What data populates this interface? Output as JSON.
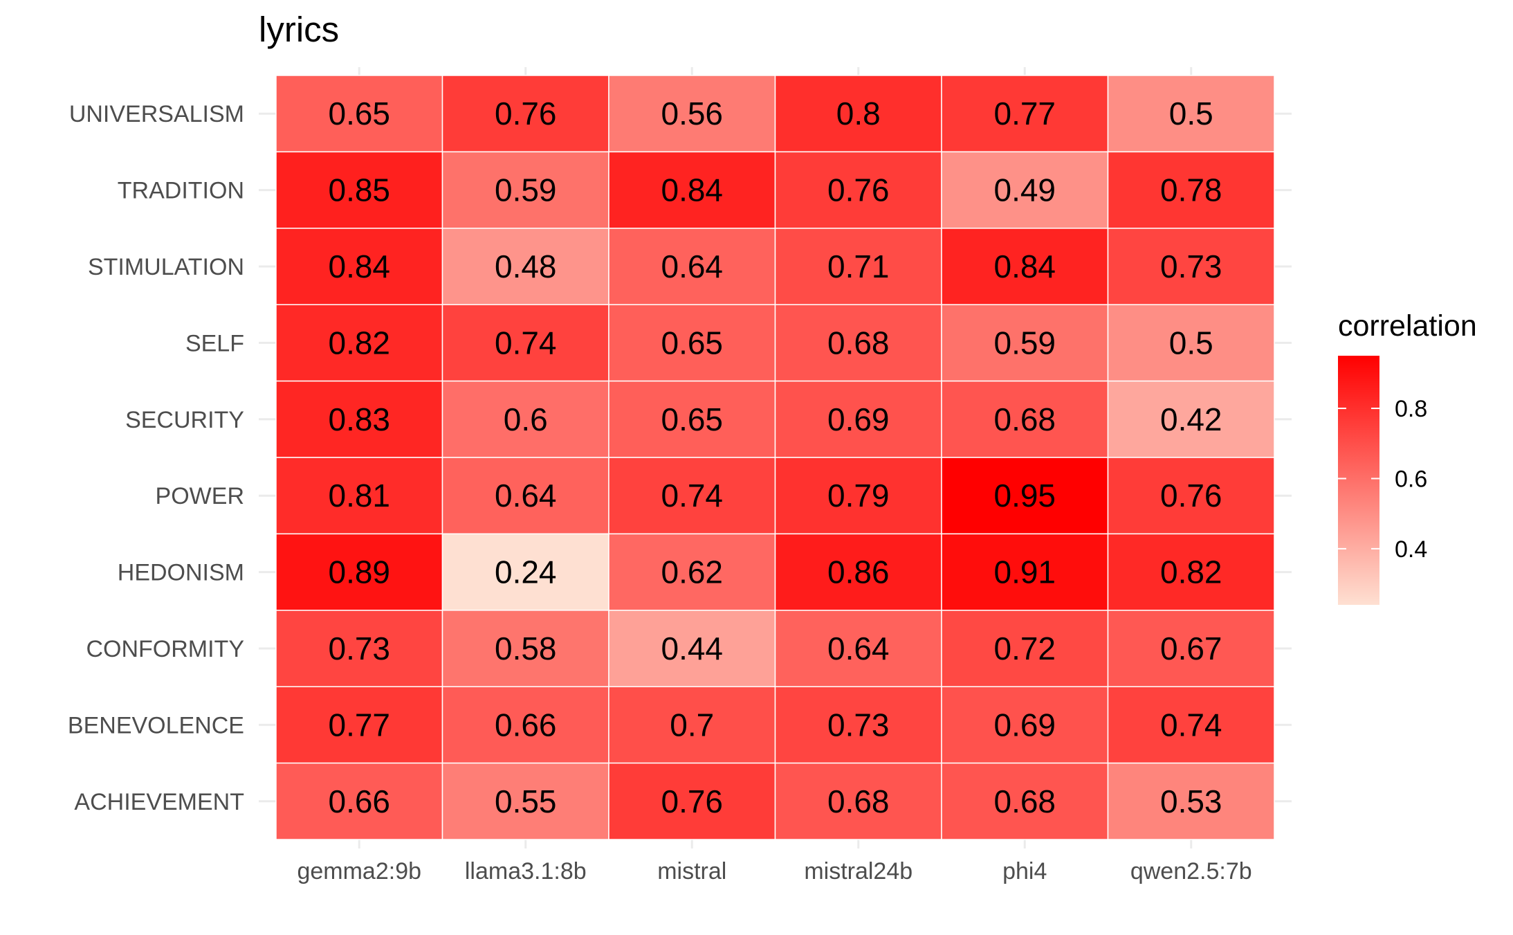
{
  "chart_data": {
    "type": "heatmap",
    "title": "lyrics",
    "xlabel": "",
    "ylabel": "",
    "x_categories": [
      "gemma2:9b",
      "llama3.1:8b",
      "mistral",
      "mistral24b",
      "phi4",
      "qwen2.5:7b"
    ],
    "y_categories": [
      "UNIVERSALISM",
      "TRADITION",
      "STIMULATION",
      "SELF",
      "SECURITY",
      "POWER",
      "HEDONISM",
      "CONFORMITY",
      "BENEVOLENCE",
      "ACHIEVEMENT"
    ],
    "values": [
      [
        0.65,
        0.76,
        0.56,
        0.8,
        0.77,
        0.5
      ],
      [
        0.85,
        0.59,
        0.84,
        0.76,
        0.49,
        0.78
      ],
      [
        0.84,
        0.48,
        0.64,
        0.71,
        0.84,
        0.73
      ],
      [
        0.82,
        0.74,
        0.65,
        0.68,
        0.59,
        0.5
      ],
      [
        0.83,
        0.6,
        0.65,
        0.69,
        0.68,
        0.42
      ],
      [
        0.81,
        0.64,
        0.74,
        0.79,
        0.95,
        0.76
      ],
      [
        0.89,
        0.24,
        0.62,
        0.86,
        0.91,
        0.82
      ],
      [
        0.73,
        0.58,
        0.44,
        0.64,
        0.72,
        0.67
      ],
      [
        0.77,
        0.66,
        0.7,
        0.73,
        0.69,
        0.74
      ],
      [
        0.66,
        0.55,
        0.76,
        0.68,
        0.68,
        0.53
      ]
    ],
    "value_labels": [
      [
        "0.65",
        "0.76",
        "0.56",
        "0.8",
        "0.77",
        "0.5"
      ],
      [
        "0.85",
        "0.59",
        "0.84",
        "0.76",
        "0.49",
        "0.78"
      ],
      [
        "0.84",
        "0.48",
        "0.64",
        "0.71",
        "0.84",
        "0.73"
      ],
      [
        "0.82",
        "0.74",
        "0.65",
        "0.68",
        "0.59",
        "0.5"
      ],
      [
        "0.83",
        "0.6",
        "0.65",
        "0.69",
        "0.68",
        "0.42"
      ],
      [
        "0.81",
        "0.64",
        "0.74",
        "0.79",
        "0.95",
        "0.76"
      ],
      [
        "0.89",
        "0.24",
        "0.62",
        "0.86",
        "0.91",
        "0.82"
      ],
      [
        "0.73",
        "0.58",
        "0.44",
        "0.64",
        "0.72",
        "0.67"
      ],
      [
        "0.77",
        "0.66",
        "0.7",
        "0.73",
        "0.69",
        "0.74"
      ],
      [
        "0.66",
        "0.55",
        "0.76",
        "0.68",
        "0.68",
        "0.53"
      ]
    ],
    "color_scale": {
      "title": "correlation",
      "low_color": "#fee0d2",
      "high_color": "#ff0000",
      "range": [
        0.24,
        0.95
      ],
      "ticks": [
        0.4,
        0.6,
        0.8
      ],
      "tick_labels": [
        "0.4",
        "0.6",
        "0.8"
      ]
    },
    "grid": true,
    "grid_color": "#ebebeb",
    "legend_position": "right"
  }
}
